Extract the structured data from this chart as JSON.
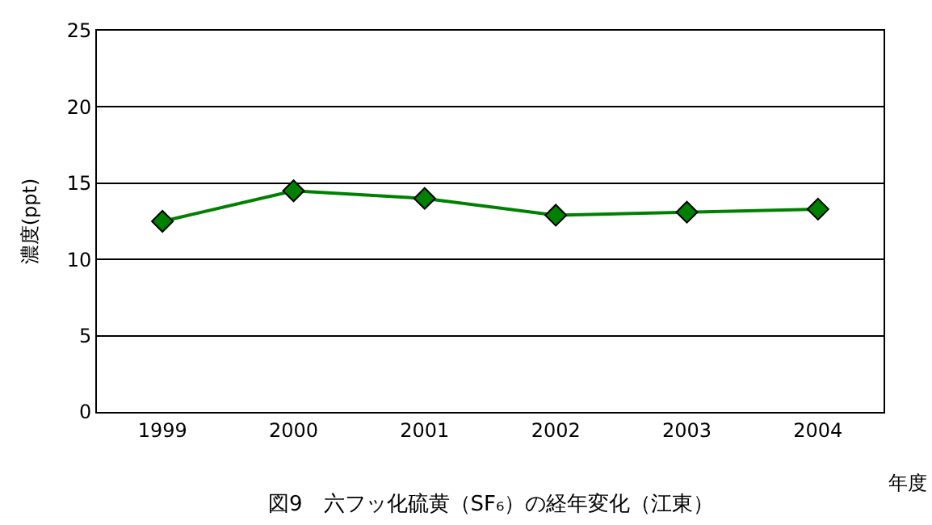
{
  "chart_data": {
    "type": "line",
    "title": "図9　六フッ化硫黄（SF₆）の経年変化（江東）",
    "xlabel": "年度",
    "ylabel": "濃度(ppt)",
    "categories": [
      "1999",
      "2000",
      "2001",
      "2002",
      "2003",
      "2004"
    ],
    "series": [
      {
        "color": "#008000",
        "values": [
          12.5,
          14.5,
          14.0,
          12.9,
          13.1,
          13.3
        ]
      }
    ],
    "ylim": [
      0,
      25
    ],
    "yticks": [
      0,
      5,
      10,
      15,
      20,
      25
    ],
    "grid": "y",
    "marker": "diamond",
    "line_style": "solid"
  }
}
